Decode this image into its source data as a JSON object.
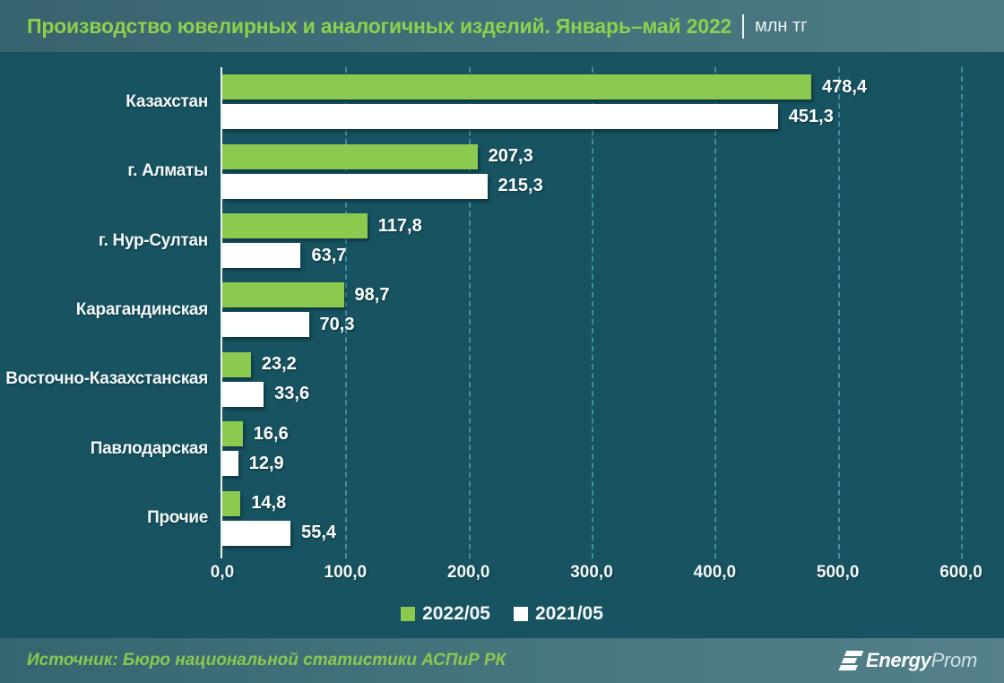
{
  "header": {
    "title": "Производство ювелирных и аналогичных изделий. Январь–май 2022",
    "unit": "млн тг"
  },
  "chart_data": {
    "type": "bar",
    "orientation": "horizontal",
    "title": "Производство ювелирных и аналогичных изделий. Январь–май 2022 (млн тг)",
    "categories": [
      "Казахстан",
      "г. Алматы",
      "г. Нур-Султан",
      "Карагандинская",
      "Восточно-Казахстанская",
      "Павлодарская",
      "Прочие"
    ],
    "series": [
      {
        "name": "2022/05",
        "color": "#8bc94f",
        "values": [
          478.4,
          207.3,
          117.8,
          98.7,
          23.2,
          16.6,
          14.8
        ],
        "labels": [
          "478,4",
          "207,3",
          "117,8",
          "98,7",
          "23,2",
          "16,6",
          "14,8"
        ]
      },
      {
        "name": "2021/05",
        "color": "#ffffff",
        "values": [
          451.3,
          215.3,
          63.7,
          70.3,
          33.6,
          12.9,
          55.4
        ],
        "labels": [
          "451,3",
          "215,3",
          "63,7",
          "70,3",
          "33,6",
          "12,9",
          "55,4"
        ]
      }
    ],
    "xlim": [
      0,
      600
    ],
    "x_tick_values": [
      0,
      100,
      200,
      300,
      400,
      500,
      600
    ],
    "x_ticks": [
      "0,0",
      "100,0",
      "200,0",
      "300,0",
      "400,0",
      "500,0",
      "600,0"
    ],
    "grid": "vertical-dashed",
    "legend_position": "bottom",
    "background_color": "#175360",
    "accent_green": "#8bc94f"
  },
  "footer": {
    "source": "Источник: Бюро национальной статистики АСПиР РК",
    "brand_bold": "Energy",
    "brand_light": "Prom"
  }
}
